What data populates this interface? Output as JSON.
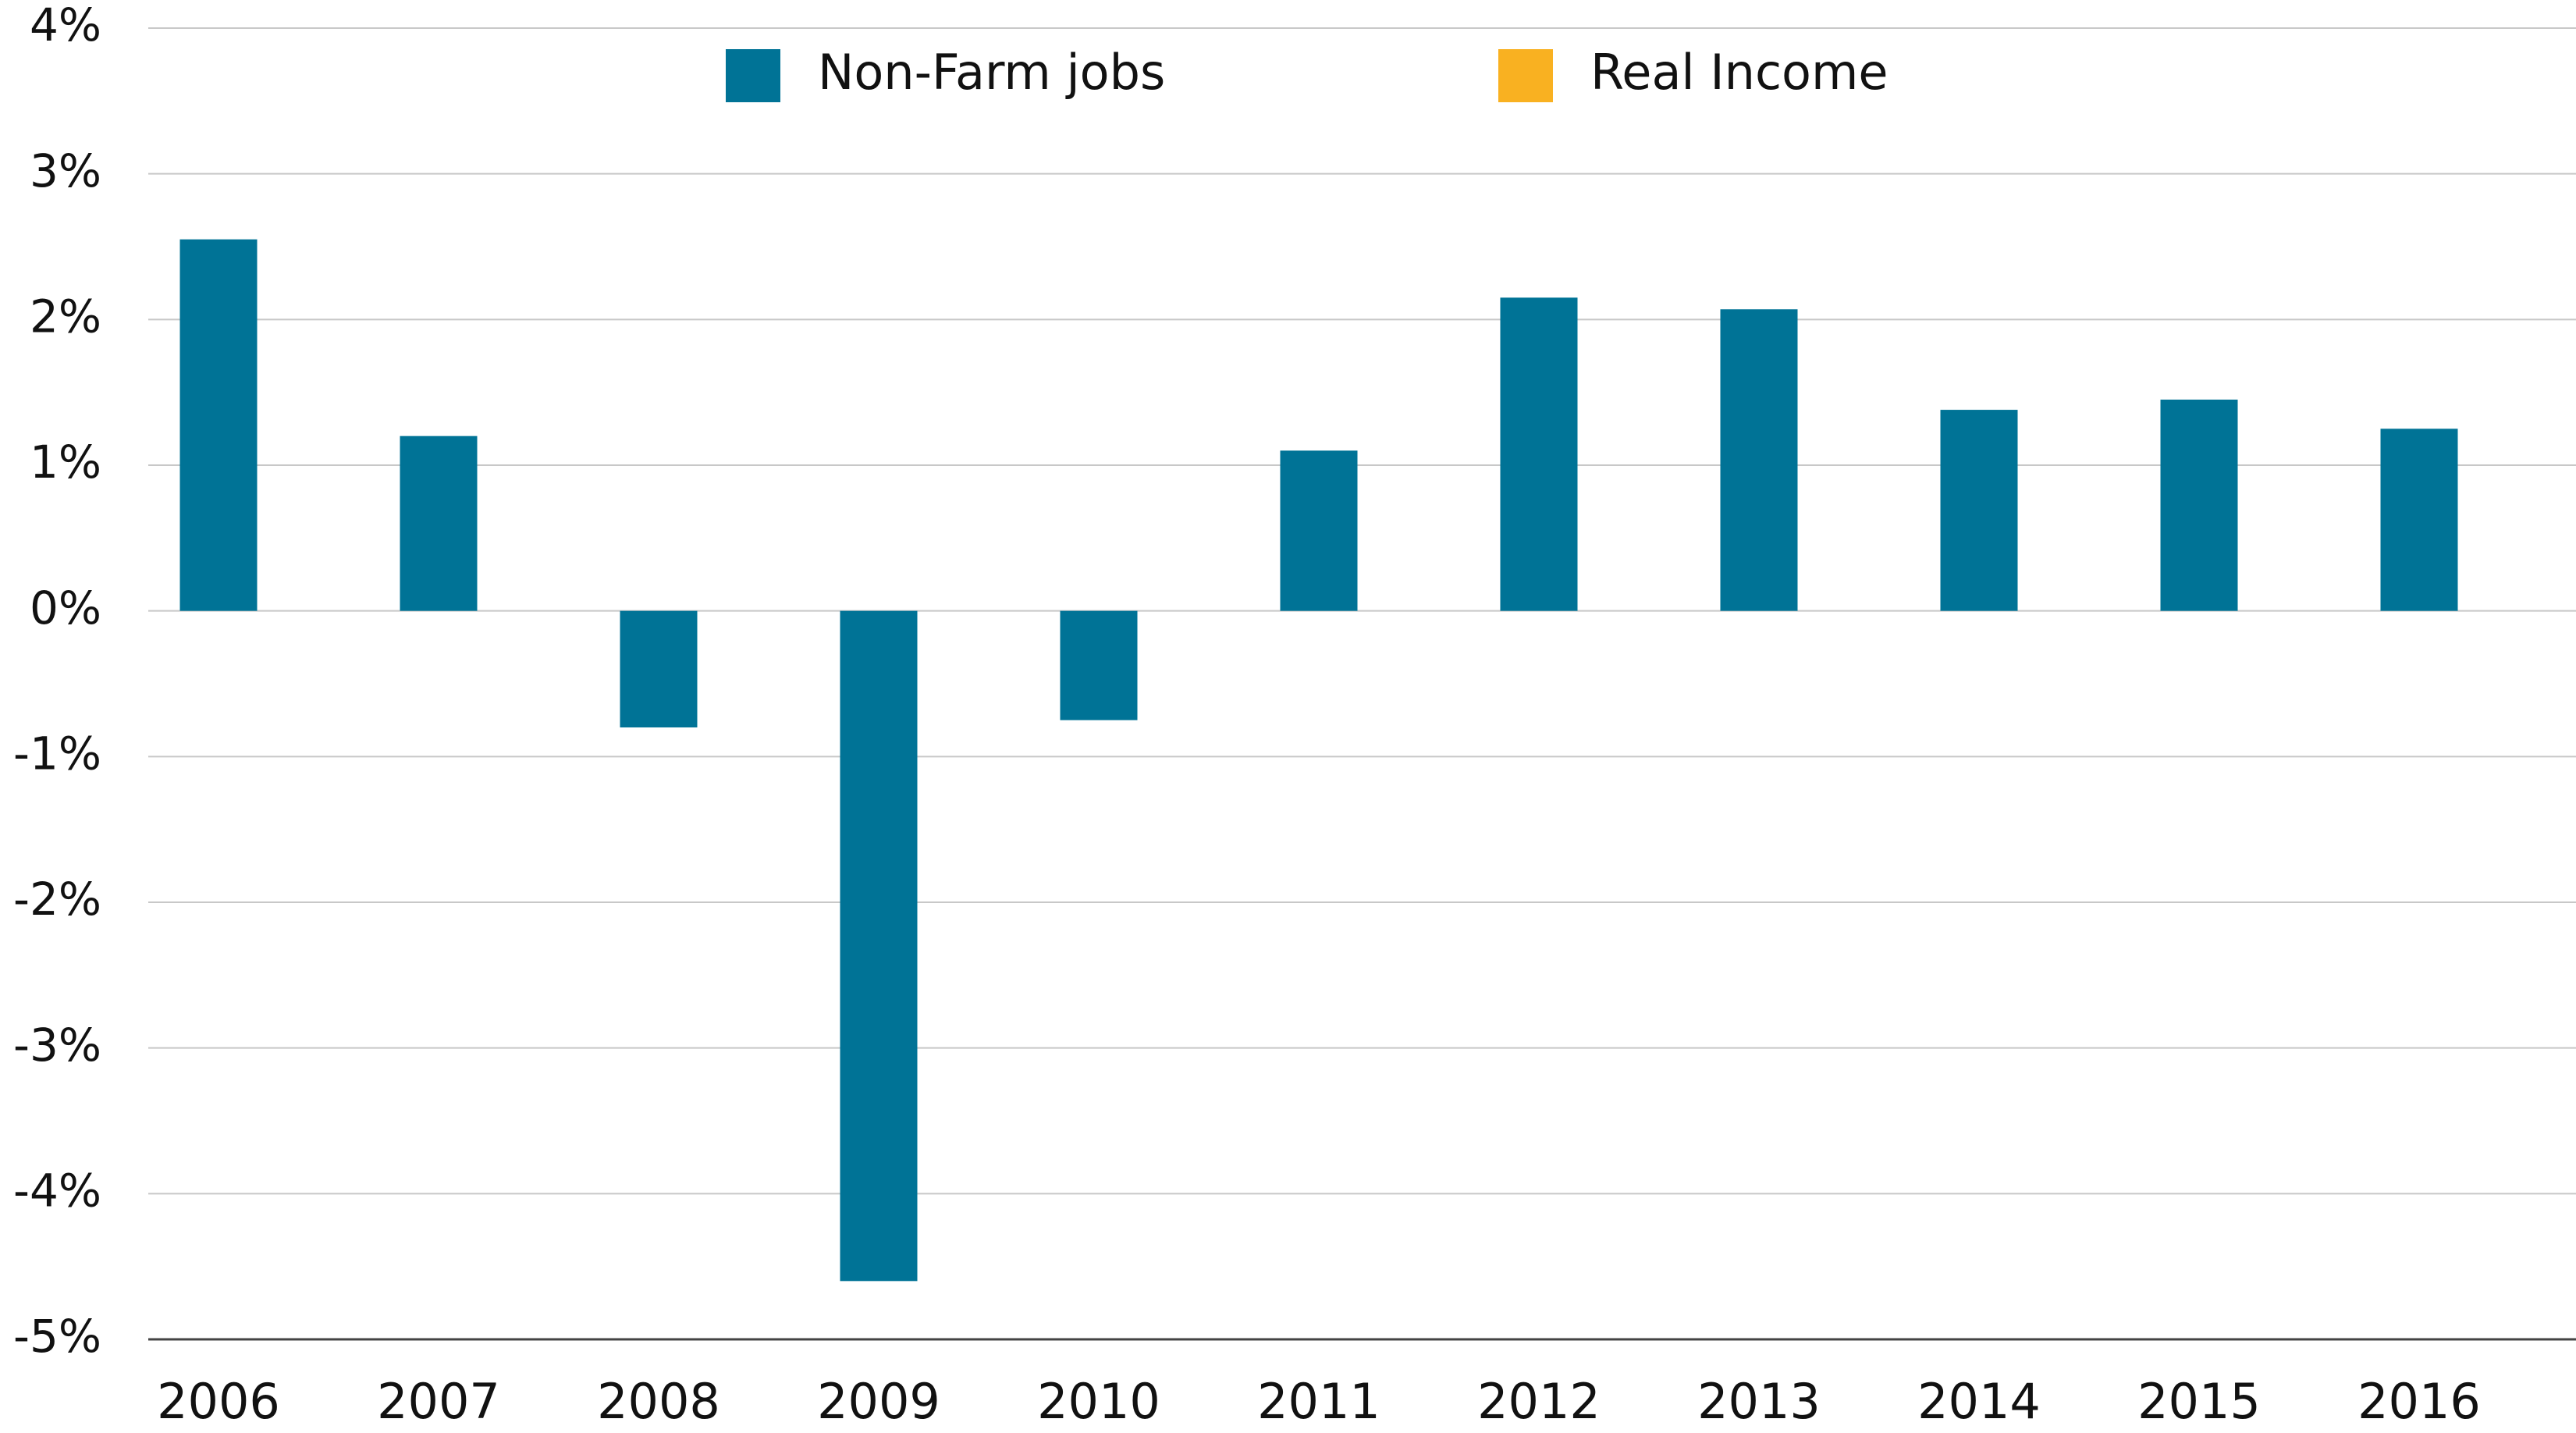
{
  "chart_data": {
    "type": "bar",
    "categories": [
      "2006",
      "2007",
      "2008",
      "2009",
      "2010",
      "2011",
      "2012",
      "2013",
      "2014",
      "2015",
      "2016"
    ],
    "series": [
      {
        "name": "Non-Farm jobs",
        "color": "#007396",
        "values": [
          2.55,
          1.2,
          -0.8,
          -4.6,
          -0.75,
          1.1,
          2.15,
          2.07,
          1.38,
          1.45,
          1.25
        ]
      },
      {
        "name": "Real Income",
        "color": "#f9b121",
        "values": [
          null,
          null,
          null,
          null,
          null,
          null,
          null,
          null,
          null,
          null,
          null
        ]
      }
    ],
    "ylim": [
      -5,
      4
    ],
    "yticks": [
      {
        "value": -5,
        "label": "-5%"
      },
      {
        "value": -4,
        "label": "-4%"
      },
      {
        "value": -3,
        "label": "-3%"
      },
      {
        "value": -2,
        "label": "-2%"
      },
      {
        "value": -1,
        "label": "-1%"
      },
      {
        "value": 0,
        "label": "0%"
      },
      {
        "value": 1,
        "label": "1%"
      },
      {
        "value": 2,
        "label": "2%"
      },
      {
        "value": 3,
        "label": "3%"
      },
      {
        "value": 4,
        "label": "4%"
      }
    ],
    "grid": true
  }
}
